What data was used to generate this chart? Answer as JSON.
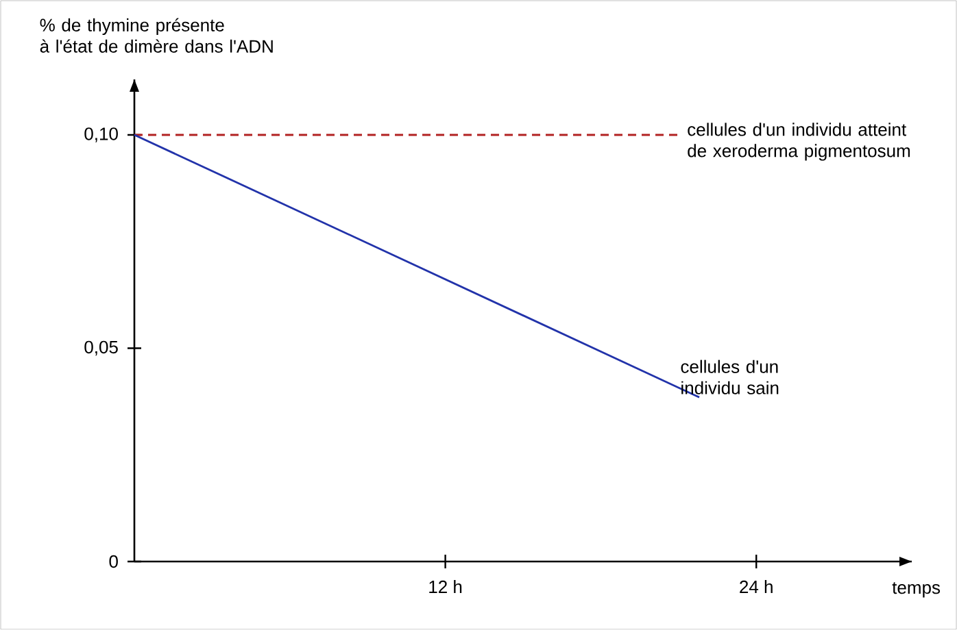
{
  "chart_data": {
    "type": "line",
    "ylabel": "% de thymine présente à l'état de dimère dans l'ADN",
    "xlabel": "temps",
    "xlim": [
      0,
      30
    ],
    "ylim": [
      0,
      0.113
    ],
    "xticks": [
      {
        "value": 12,
        "label": "12 h"
      },
      {
        "value": 24,
        "label": "24 h"
      }
    ],
    "yticks": [
      {
        "value": 0,
        "label": "0"
      },
      {
        "value": 0.05,
        "label": "0,05"
      },
      {
        "value": 0.1,
        "label": "0,10"
      }
    ],
    "series": [
      {
        "name": "cellules d'un individu atteint de xeroderma pigmentosum",
        "color": "#b22222",
        "line_style": "dashed",
        "x": [
          0,
          21
        ],
        "values": [
          0.1,
          0.1
        ]
      },
      {
        "name": "cellules d'un individu sain",
        "color": "#2233aa",
        "line_style": "solid",
        "x": [
          0,
          21.8
        ],
        "values": [
          0.1,
          0.0385
        ]
      }
    ],
    "marker": "none",
    "grid": false,
    "legend": false
  }
}
